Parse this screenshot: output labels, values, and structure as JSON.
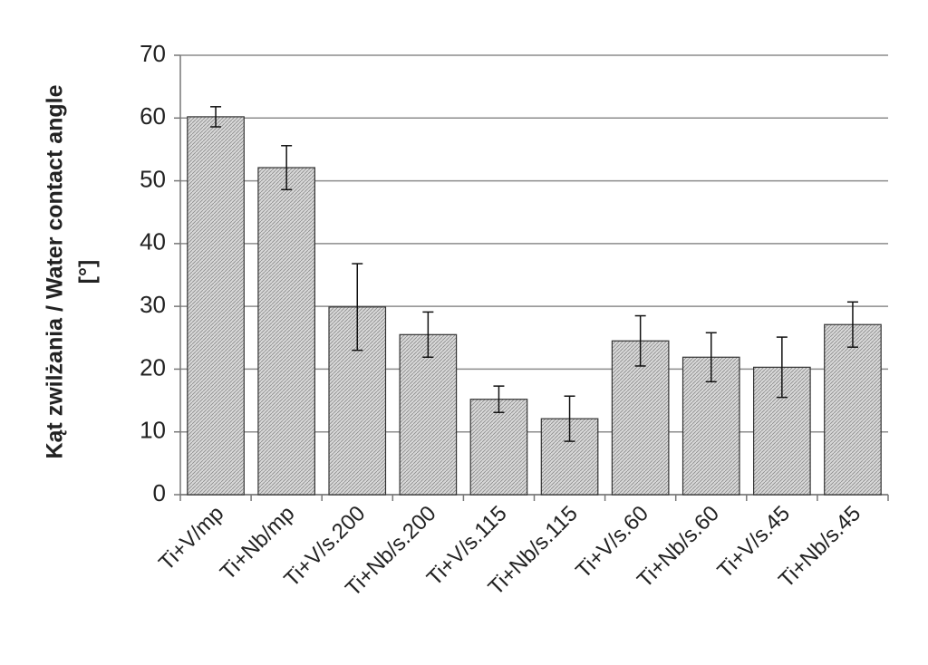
{
  "chart_data": {
    "type": "bar",
    "ylabel": [
      "Kąt zwilżania / Water contact angle",
      "[°]"
    ],
    "categories": [
      "Ti+V/mp",
      "Ti+Nb/mp",
      "Ti+V/s.200",
      "Ti+Nb/s.200",
      "Ti+V/s.115",
      "Ti+Nb/s.115",
      "Ti+V/s.60",
      "Ti+Nb/s.60",
      "Ti+V/s.45",
      "Ti+Nb/s.45"
    ],
    "values": [
      60.2,
      52.1,
      29.9,
      25.5,
      15.2,
      12.1,
      24.5,
      21.9,
      20.3,
      27.1
    ],
    "errors": [
      1.6,
      3.5,
      6.9,
      3.6,
      2.1,
      3.6,
      4.0,
      3.9,
      4.8,
      3.6
    ],
    "color": "#bcbcbc",
    "ylim": [
      0,
      70
    ],
    "yticks": [
      0,
      10,
      20,
      30,
      40,
      50,
      60,
      70
    ],
    "grid": true
  }
}
